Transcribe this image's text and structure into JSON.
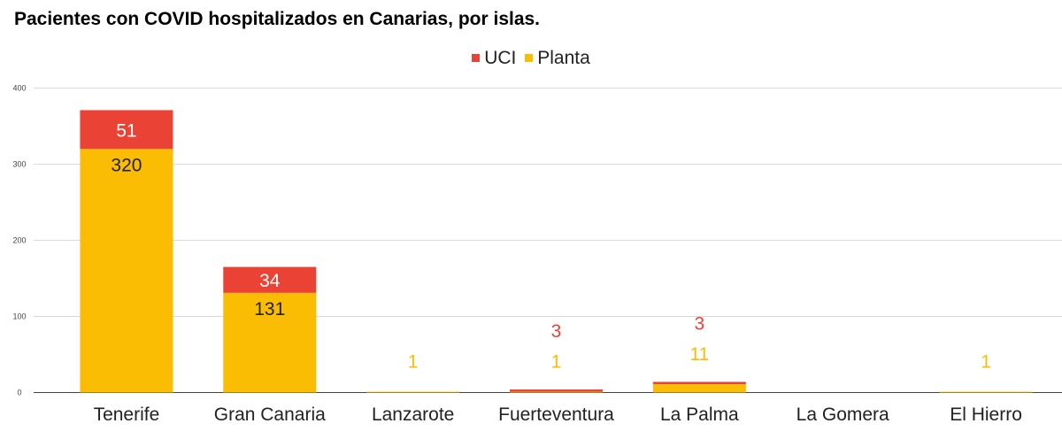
{
  "chart_data": {
    "type": "bar",
    "stacked": true,
    "title": "Pacientes con COVID hospitalizados en Canarias, por islas.",
    "xlabel": "",
    "ylabel": "",
    "ylim": [
      0,
      400
    ],
    "yticks": [
      0,
      100,
      200,
      300,
      400
    ],
    "grid": true,
    "legend_position": "top-center",
    "categories": [
      "Tenerife",
      "Gran Canaria",
      "Lanzarote",
      "Fuerteventura",
      "La Palma",
      "La Gomera",
      "El Hierro"
    ],
    "series": [
      {
        "name": "Planta",
        "color": "#fbbc04",
        "values": [
          320,
          131,
          1,
          1,
          11,
          0,
          1
        ],
        "labels": [
          "320",
          "131",
          "1",
          "1",
          "11",
          "",
          "1"
        ]
      },
      {
        "name": "UCI",
        "color": "#ea4335",
        "values": [
          51,
          34,
          0,
          3,
          3,
          0,
          0
        ],
        "labels": [
          "51",
          "34",
          "",
          "3",
          "3",
          "",
          ""
        ]
      }
    ],
    "legend_order": [
      "UCI",
      "Planta"
    ]
  }
}
